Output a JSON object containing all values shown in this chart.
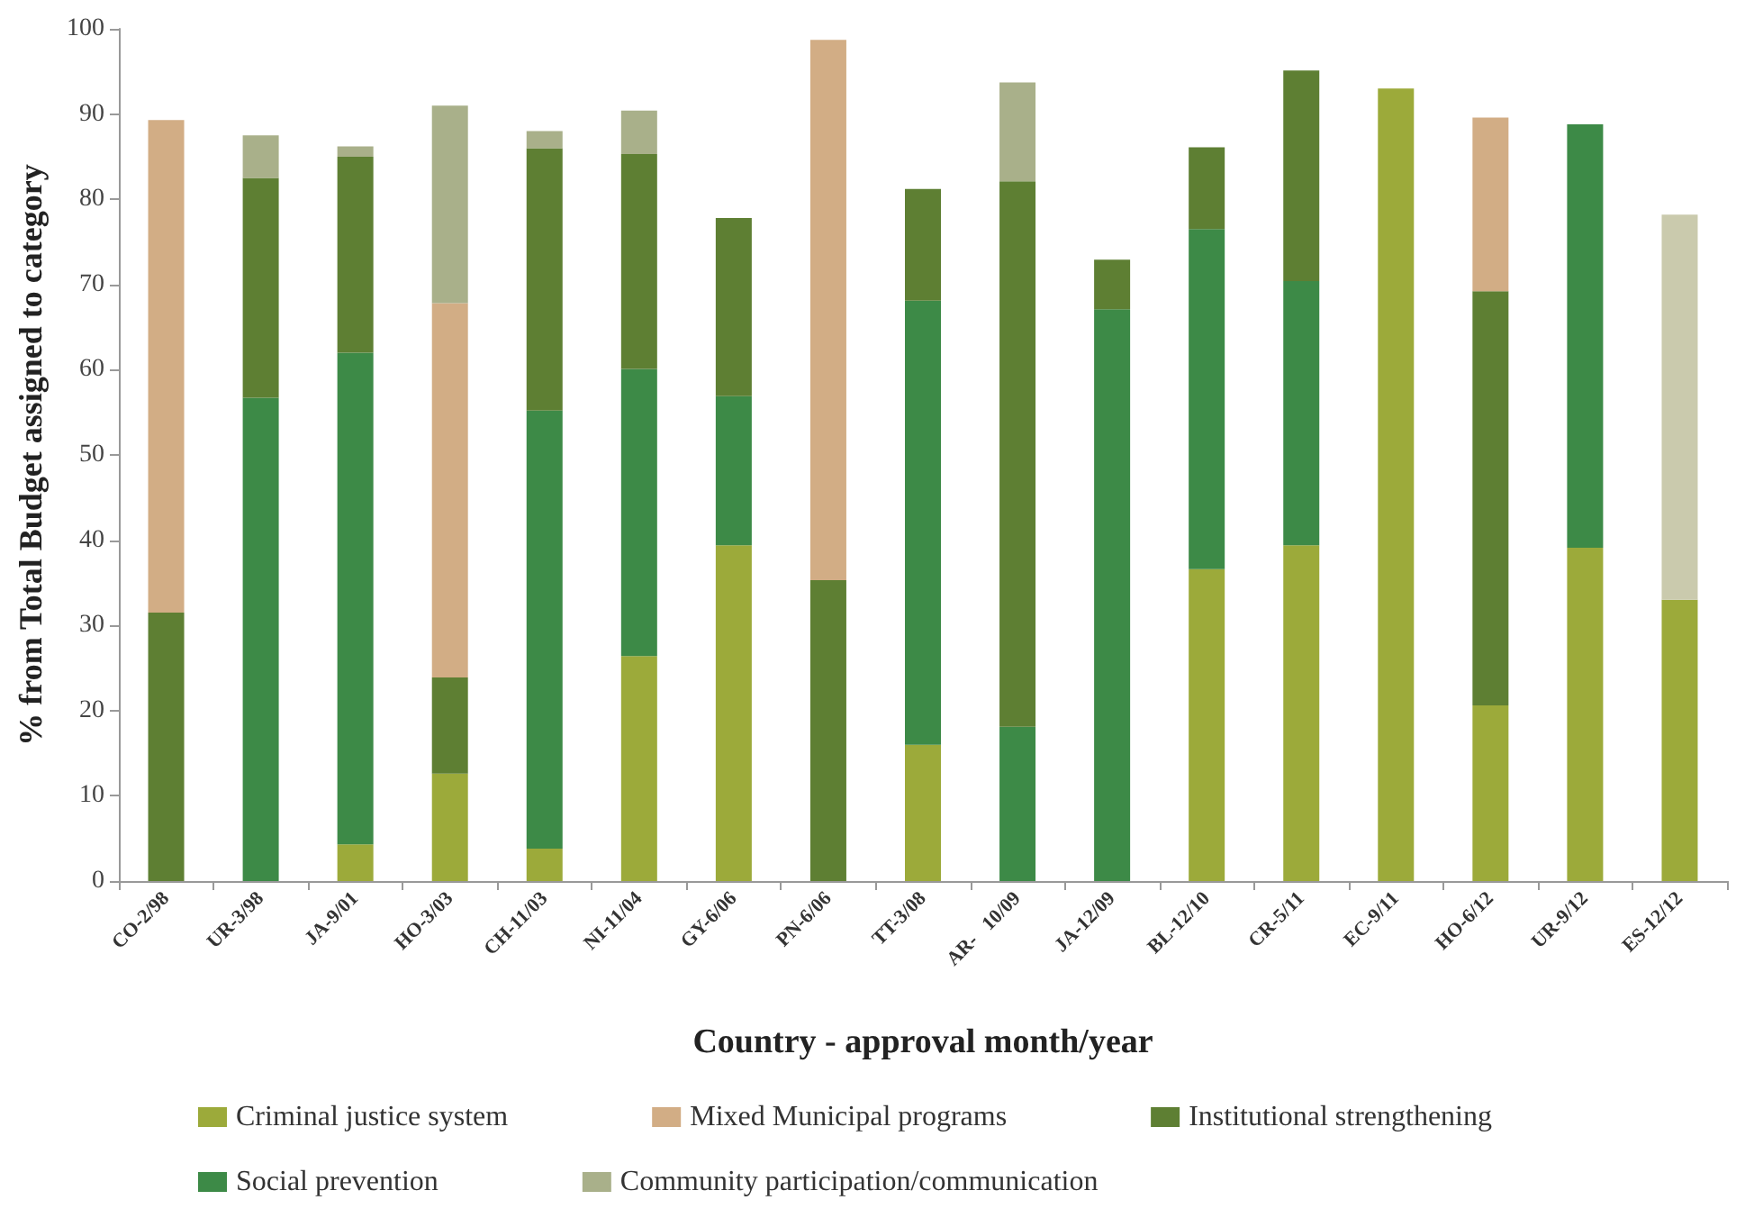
{
  "chart_data": {
    "type": "bar",
    "stacked": true,
    "xlabel": "Country - approval month/year",
    "ylabel": "% from Total Budget assigned to category",
    "categories": [
      "CO-2/98",
      "UR-3/98",
      "JA-9/01",
      "HO-3/03",
      "CH-11/03",
      "NI-11/04",
      "GY-6/06",
      "PN-6/06",
      "TT-3/08",
      "AR-   10/09",
      "JA-12/09",
      "BL-12/10",
      "CR-5/11",
      "EC-9/11",
      "HO-6/12",
      "UR-9/12",
      "ES-12/12"
    ],
    "series": [
      {
        "name": "Criminal justice system",
        "color": "#9caa3a",
        "values": [
          null,
          null,
          4.3,
          12.6,
          3.8,
          26.4,
          39.4,
          null,
          16.0,
          null,
          null,
          36.6,
          39.4,
          93.0,
          20.6,
          39.1,
          33.0
        ]
      },
      {
        "name": "Social prevention",
        "color": "#3d8a47",
        "values": [
          null,
          56.7,
          57.7,
          null,
          51.4,
          33.7,
          17.5,
          null,
          52.1,
          18.1,
          67.1,
          39.9,
          31.0,
          null,
          null,
          49.7,
          null
        ]
      },
      {
        "name": "Institutional strengthening",
        "color": "#5e7f33",
        "values": [
          31.5,
          25.8,
          23.0,
          11.3,
          30.8,
          25.2,
          20.9,
          35.3,
          13.1,
          64.0,
          5.8,
          9.6,
          24.7,
          null,
          48.6,
          null,
          null
        ]
      },
      {
        "name": "Mixed Municipal programs",
        "color": "#d2ad85",
        "values": [
          57.8,
          null,
          null,
          43.9,
          null,
          null,
          null,
          63.4,
          null,
          null,
          null,
          null,
          null,
          null,
          20.4,
          null,
          null
        ]
      },
      {
        "name": "Community participation/communication",
        "color": "#a9b08a",
        "values": [
          null,
          5.0,
          1.2,
          23.2,
          2.0,
          5.1,
          null,
          null,
          null,
          11.6,
          null,
          null,
          null,
          null,
          null,
          null,
          null
        ]
      },
      {
        "color": "#cacaad",
        "values": [
          null,
          null,
          null,
          null,
          null,
          null,
          null,
          null,
          null,
          null,
          null,
          null,
          null,
          null,
          null,
          null,
          45.2
        ]
      }
    ],
    "ylim": [
      0,
      100
    ],
    "yticks": [
      0,
      10,
      20,
      30,
      40,
      50,
      60,
      70,
      80,
      90,
      100
    ],
    "grid": false,
    "legend": "bottom"
  }
}
